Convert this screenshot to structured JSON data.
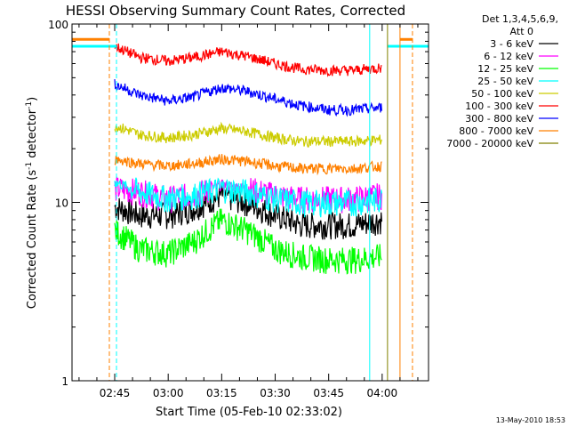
{
  "chart_data": {
    "type": "line",
    "title": "HESSI Observing Summary Count Rates, Corrected",
    "xlabel": "Start Time (05-Feb-10 02:33:02)",
    "ylabel": "Corrected Count Rate (s⁻¹ detector⁻¹)",
    "ylabel_main": "Corrected Count Rate (s",
    "ylabel_sup1": "-1",
    "ylabel_mid": " detector",
    "ylabel_sup2": "-1",
    "ylabel_end": ")",
    "x_ticks": [
      "02:45",
      "03:00",
      "03:15",
      "03:30",
      "03:45",
      "04:00"
    ],
    "x_tick_minutes": [
      45,
      60,
      75,
      90,
      105,
      120
    ],
    "x_range_minutes": [
      33.03,
      133
    ],
    "y_scale": "log",
    "y_ticks": [
      "1",
      "10",
      "100"
    ],
    "y_tick_values": [
      1,
      10,
      100
    ],
    "ylim": [
      1,
      100
    ],
    "legend_header": [
      "Det 1,3,4,5,6,9,",
      "Att 0"
    ],
    "legend_position": "right",
    "legend": [
      {
        "label": "3 - 6 keV",
        "color": "#000000"
      },
      {
        "label": "6 - 12 keV",
        "color": "#ff00ff"
      },
      {
        "label": "12 - 25 keV",
        "color": "#00ff00"
      },
      {
        "label": "25 - 50 keV",
        "color": "#00ffff"
      },
      {
        "label": "50 - 100 keV",
        "color": "#cccc00"
      },
      {
        "label": "100 - 300 keV",
        "color": "#ff0000"
      },
      {
        "label": "300 - 800 keV",
        "color": "#0000ff"
      },
      {
        "label": "800 - 7000 keV",
        "color": "#ff8000"
      },
      {
        "label": "7000 - 20000 keV",
        "color": "#808000"
      }
    ],
    "series": [
      {
        "name": "3 - 6 keV",
        "color": "#000000",
        "x": [
          45,
          52,
          60,
          67,
          75,
          82,
          90,
          97,
          105,
          112,
          120
        ],
        "y": [
          9.5,
          8.5,
          8.5,
          9.3,
          11,
          10,
          8.5,
          7.5,
          7.5,
          7.5,
          8
        ]
      },
      {
        "name": "6 - 12 keV",
        "color": "#ff00ff",
        "x": [
          45,
          52,
          60,
          67,
          75,
          82,
          90,
          97,
          105,
          112,
          120
        ],
        "y": [
          12,
          11.5,
          10.5,
          11,
          12.5,
          12,
          11,
          10.5,
          10.5,
          10.5,
          11
        ]
      },
      {
        "name": "12 - 25 keV",
        "color": "#00ff00",
        "x": [
          45,
          52,
          60,
          67,
          75,
          82,
          90,
          97,
          105,
          112,
          120
        ],
        "y": [
          7,
          5.5,
          5.2,
          6,
          8,
          7,
          5.5,
          5,
          4.8,
          4.8,
          5
        ]
      },
      {
        "name": "25 - 50 keV",
        "color": "#00ffff",
        "x": [
          45,
          52,
          60,
          67,
          75,
          82,
          90,
          97,
          105,
          112,
          120
        ],
        "y": [
          13,
          11.5,
          10.5,
          11,
          12,
          11.5,
          10.5,
          10,
          10,
          10,
          10.5
        ]
      },
      {
        "name": "50 - 100 keV",
        "color": "#cccc00",
        "x": [
          45,
          52,
          60,
          67,
          75,
          82,
          90,
          97,
          105,
          112,
          120
        ],
        "y": [
          27,
          24,
          23,
          24,
          26,
          25,
          23,
          22,
          22,
          22,
          22.5
        ]
      },
      {
        "name": "100 - 300 keV",
        "color": "#ff0000",
        "x": [
          45,
          52,
          60,
          67,
          75,
          82,
          90,
          97,
          105,
          112,
          120
        ],
        "y": [
          75,
          65,
          62,
          65,
          70,
          66,
          60,
          56,
          55,
          55,
          57
        ]
      },
      {
        "name": "300 - 800 keV",
        "color": "#0000ff",
        "x": [
          45,
          52,
          60,
          67,
          75,
          82,
          90,
          97,
          105,
          112,
          120
        ],
        "y": [
          46,
          40,
          37,
          39,
          44,
          42,
          38,
          35,
          33,
          33,
          34
        ]
      },
      {
        "name": "800 - 7000 keV",
        "color": "#ff8000",
        "x": [
          45,
          52,
          60,
          67,
          75,
          82,
          90,
          97,
          105,
          112,
          120
        ],
        "y": [
          17.5,
          16.5,
          16,
          16.5,
          17.5,
          17,
          16,
          15.5,
          15.5,
          15.5,
          16
        ]
      }
    ],
    "edge_segments": {
      "orange": {
        "left_x": [
          33.03,
          43.5
        ],
        "right_x": [
          125,
          128.5
        ],
        "y": 82
      },
      "cyan": {
        "left_x": [
          33.03,
          45.5
        ],
        "right_x": [
          121.5,
          133
        ],
        "y": 75
      }
    },
    "vlines": [
      {
        "x": 43.5,
        "color": "#ff8000",
        "style": "dashed"
      },
      {
        "x": 45.5,
        "color": "#00ffff",
        "style": "dashed"
      },
      {
        "x": 116.5,
        "color": "#00ffff",
        "style": "solid"
      },
      {
        "x": 121.5,
        "color": "#808000",
        "style": "solid"
      },
      {
        "x": 125,
        "color": "#ff8000",
        "style": "solid"
      },
      {
        "x": 128.5,
        "color": "#ff8000",
        "style": "dashed"
      },
      {
        "x": 133,
        "color": "#00ffff",
        "style": "solid"
      }
    ],
    "grid": false
  },
  "timestamp": "13-May-2010 18:53"
}
